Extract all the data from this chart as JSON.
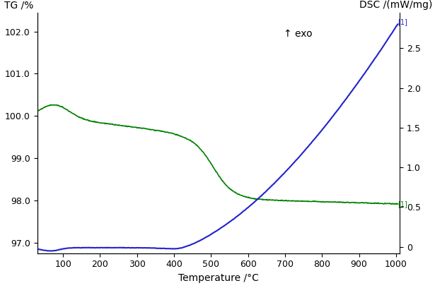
{
  "tg_color": "#008000",
  "dsc_color": "#2222CC",
  "xlabel": "Temperature /°C",
  "ylabel_left": "TG /%",
  "ylabel_right": "DSC /(mW/mg)",
  "exo_label": "↑ exo",
  "xlim": [
    30,
    1010
  ],
  "xticks": [
    100,
    200,
    300,
    400,
    500,
    600,
    700,
    800,
    900,
    1000
  ],
  "ylim_left": [
    96.75,
    102.45
  ],
  "yticks_left": [
    97.0,
    98.0,
    99.0,
    100.0,
    101.0,
    102.0
  ],
  "ylim_right": [
    -0.08,
    2.95
  ],
  "yticks_right": [
    0,
    0.5,
    1.0,
    1.5,
    2.0,
    2.5
  ],
  "bg_color": "#ffffff",
  "label_1": "[1]"
}
